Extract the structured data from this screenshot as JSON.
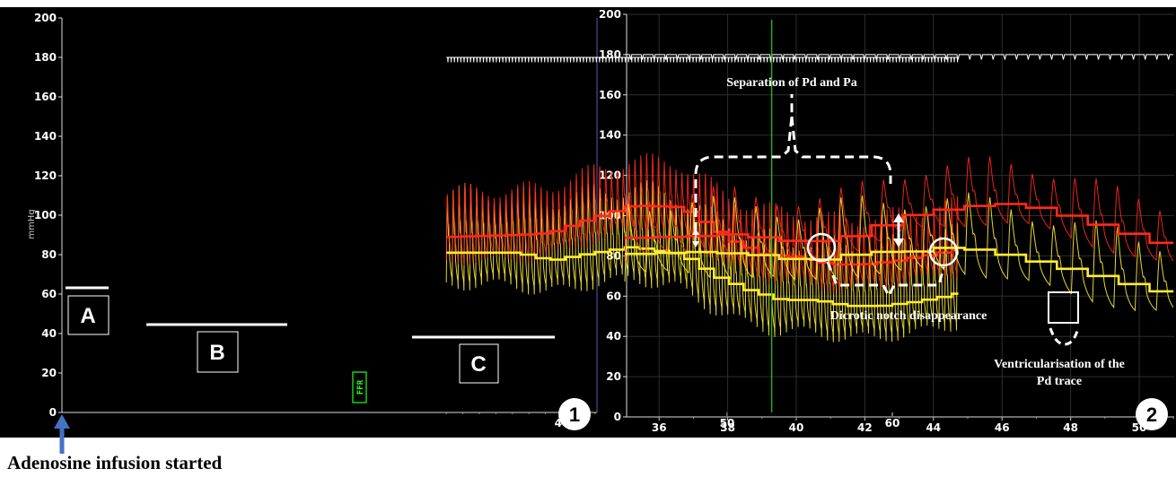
{
  "caption": "Adenosine infusion started",
  "colors": {
    "background": "#000000",
    "pa_trace": "#ff2a1a",
    "pd_trace": "#ffee33",
    "ecg": "#ffffff",
    "ffr_marker": "#22cc22",
    "arrow": "#4472c4"
  },
  "icons": {
    "arrow": "arrow-up-icon"
  },
  "panel1": {
    "number": "1",
    "y_unit": "mmHg",
    "ffr_label": "FFR",
    "labels": {
      "A": "A",
      "B": "B",
      "C": "C"
    }
  },
  "panel2": {
    "number": "2",
    "annotations": {
      "separation": "Separation of Pd and Pa",
      "dicrotic": "Dicrotic notch disappearance",
      "ventricular_line1": "Ventricularisation of the",
      "ventricular_line2": "Pd trace"
    }
  },
  "chart_data": [
    {
      "type": "line",
      "ylim": [
        0,
        200
      ],
      "xlim": [
        33,
        65
      ],
      "yticks": [
        0,
        20,
        40,
        60,
        80,
        100,
        120,
        140,
        160,
        180,
        200
      ],
      "xticks": [
        40,
        50,
        60
      ],
      "grid": false,
      "ffr_marker_x": 52.7,
      "series": [
        {
          "x": [
            33,
            37,
            39,
            41,
            44,
            47,
            50,
            52,
            54,
            56,
            58,
            60,
            62,
            64
          ],
          "y": [
            89,
            90,
            91,
            97,
            105,
            104,
            87,
            80,
            79,
            75,
            75,
            77,
            80,
            83
          ]
        },
        {
          "x": [
            33,
            37,
            39,
            41,
            44,
            47,
            49,
            51,
            53,
            55,
            57,
            59,
            61,
            63,
            64
          ],
          "y": [
            81,
            81,
            77,
            80,
            84,
            80,
            69,
            62,
            57,
            57,
            54,
            54,
            56,
            59,
            61
          ]
        },
        {
          "x": [
            33,
            64
          ],
          "y": [
            180,
            180
          ]
        }
      ]
    },
    {
      "type": "line",
      "ylim": [
        0,
        200
      ],
      "xlim": [
        35,
        51
      ],
      "yticks": [
        0,
        20,
        40,
        60,
        80,
        100,
        120,
        140,
        160,
        180,
        200
      ],
      "xticks": [
        36,
        38,
        40,
        42,
        44,
        46,
        48,
        50
      ],
      "grid": true,
      "series": [
        {
          "x": [
            35,
            37,
            38,
            39,
            40,
            41,
            42,
            43,
            44,
            45,
            46,
            47,
            48,
            49,
            50,
            51
          ],
          "y": [
            89,
            90,
            91,
            88,
            87,
            88,
            94,
            100,
            103,
            105,
            106,
            103,
            98,
            93,
            88,
            83
          ]
        },
        {
          "x": [
            35,
            37,
            38,
            39,
            40,
            41,
            42,
            43,
            44,
            45,
            46,
            47,
            48,
            49,
            50,
            51
          ],
          "y": [
            81,
            82,
            81,
            80,
            77,
            80,
            82,
            82,
            84,
            83,
            80,
            76,
            72,
            68,
            63,
            61
          ]
        },
        {
          "x": [
            35,
            51
          ],
          "y": [
            180,
            180
          ]
        }
      ]
    }
  ]
}
